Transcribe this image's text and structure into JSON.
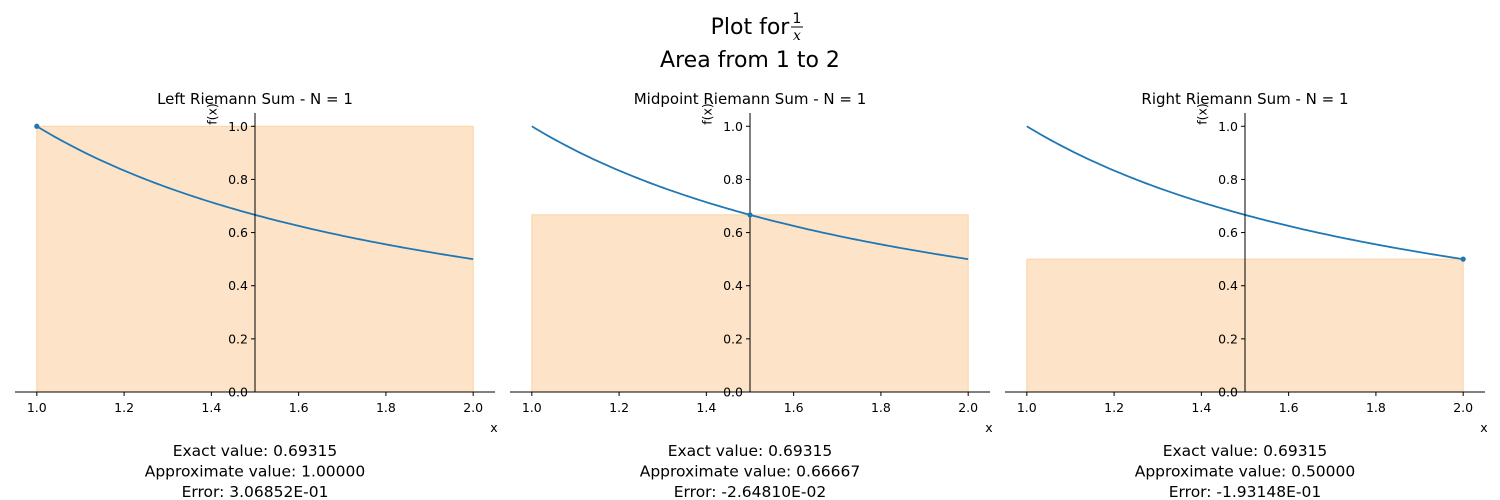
{
  "figure": {
    "title_prefix": "Plot for ",
    "title_frac_num": "1",
    "title_frac_den": "x",
    "title_line2": "Area from 1 to 2"
  },
  "colors": {
    "curve": "#1f77b4",
    "bar_fill": "#fde4c8",
    "bar_edge": "#fbd2a3",
    "point": "#1f77b4"
  },
  "chart_data": [
    {
      "type": "line",
      "title": "Left Riemann Sum - N = 1",
      "xlabel": "x",
      "ylabel": "f(x)",
      "xlim": [
        0.95,
        2.05
      ],
      "ylim": [
        0,
        1.05
      ],
      "xticks": [
        "1.0",
        "1.2",
        "1.4",
        "1.6",
        "1.8",
        "2.0"
      ],
      "yticks": [
        "0.0",
        "0.2",
        "0.4",
        "0.6",
        "0.8",
        "1.0"
      ],
      "function": "1/x",
      "curve": {
        "x_start": 1,
        "x_end": 2
      },
      "rectangles": [
        {
          "x0": 1.0,
          "x1": 2.0,
          "height": 1.0
        }
      ],
      "sample_points": [
        {
          "x": 1.0,
          "y": 1.0
        }
      ],
      "stats": {
        "exact": "Exact value: 0.69315",
        "approx": "Approximate value: 1.00000",
        "error": "Error: 3.06852E-01"
      }
    },
    {
      "type": "line",
      "title": "Midpoint Riemann Sum - N = 1",
      "xlabel": "x",
      "ylabel": "f(x)",
      "xlim": [
        0.95,
        2.05
      ],
      "ylim": [
        0,
        1.05
      ],
      "xticks": [
        "1.0",
        "1.2",
        "1.4",
        "1.6",
        "1.8",
        "2.0"
      ],
      "yticks": [
        "0.0",
        "0.2",
        "0.4",
        "0.6",
        "0.8",
        "1.0"
      ],
      "function": "1/x",
      "curve": {
        "x_start": 1,
        "x_end": 2
      },
      "rectangles": [
        {
          "x0": 1.0,
          "x1": 2.0,
          "height": 0.66667
        }
      ],
      "sample_points": [
        {
          "x": 1.5,
          "y": 0.66667
        }
      ],
      "stats": {
        "exact": "Exact value: 0.69315",
        "approx": "Approximate value: 0.66667",
        "error": "Error: -2.64810E-02"
      }
    },
    {
      "type": "line",
      "title": "Right Riemann Sum - N = 1",
      "xlabel": "x",
      "ylabel": "f(x)",
      "xlim": [
        0.95,
        2.05
      ],
      "ylim": [
        0,
        1.05
      ],
      "xticks": [
        "1.0",
        "1.2",
        "1.4",
        "1.6",
        "1.8",
        "2.0"
      ],
      "yticks": [
        "0.0",
        "0.2",
        "0.4",
        "0.6",
        "0.8",
        "1.0"
      ],
      "function": "1/x",
      "curve": {
        "x_start": 1,
        "x_end": 2
      },
      "rectangles": [
        {
          "x0": 1.0,
          "x1": 2.0,
          "height": 0.5
        }
      ],
      "sample_points": [
        {
          "x": 2.0,
          "y": 0.5
        }
      ],
      "stats": {
        "exact": "Exact value: 0.69315",
        "approx": "Approximate value: 0.50000",
        "error": "Error: -1.93148E-01"
      }
    }
  ]
}
